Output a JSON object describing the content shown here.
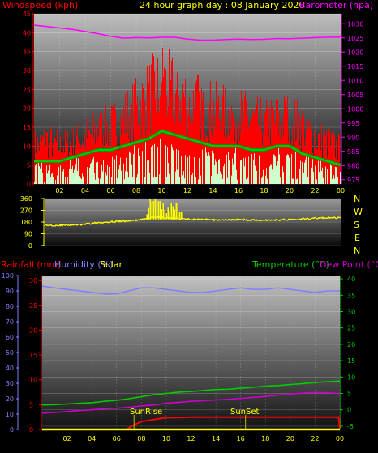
{
  "top_panel": {
    "title": "24 hour graph day : 08 January 2020",
    "left_label": "Windspeed (kph)",
    "right_label": "Barometer (hpa)"
  },
  "direction_panel": {
    "compass": [
      "N",
      "W",
      "S",
      "E",
      "N"
    ]
  },
  "bottom_panel": {
    "rain_label": "Rainfall (mm)",
    "humidity_label": "Humidity (%)",
    "solar_label": "Solar",
    "temp_label": "Temperature (°C)",
    "dew_label": "Dew Point (°C)",
    "sunrise_label": "SunRise",
    "sunset_label": "SunSet"
  },
  "colors": {
    "wind": "#ff0000",
    "wind_avg": "#00cc00",
    "wind_low": "#ccffcc",
    "pressure": "#ff00ff",
    "direction": "#ffff00",
    "temperature": "#00cc00",
    "dewpoint": "#cc00cc",
    "humidity": "#8080ff",
    "rain": "#ff0000",
    "solar": "#ffff00",
    "axis_left": "#ff0000",
    "axis_right": "#ff00ff"
  },
  "chart_data": [
    {
      "type": "line",
      "x_ticks": [
        "02",
        "04",
        "06",
        "08",
        "10",
        "12",
        "14",
        "16",
        "18",
        "20",
        "22",
        "00"
      ],
      "x_range_hours": [
        0,
        24
      ],
      "left_axis": {
        "label": "Windspeed (kph)",
        "ticks": [
          0,
          5,
          10,
          15,
          20,
          25,
          30,
          35,
          40,
          45
        ],
        "ylim": [
          0,
          45
        ]
      },
      "right_axis": {
        "label": "Barometer (hpa)",
        "ticks": [
          975,
          980,
          985,
          990,
          995,
          1000,
          1005,
          1010,
          1015,
          1020,
          1025,
          1030
        ],
        "ylim": [
          973.5,
          1033.5
        ]
      },
      "series": [
        {
          "name": "Windspeed (kph)",
          "kind": "gust",
          "x": [
            0,
            1,
            2,
            3,
            4,
            5,
            6,
            7,
            8,
            9,
            10,
            11,
            12,
            13,
            14,
            15,
            16,
            17,
            18,
            19,
            20,
            21,
            22,
            23,
            24
          ],
          "values": [
            12,
            14,
            12,
            13,
            15,
            17,
            18,
            21,
            24,
            28,
            31,
            29,
            27,
            25,
            23,
            22,
            22,
            20,
            19,
            20,
            21,
            18,
            15,
            13,
            11
          ]
        },
        {
          "name": "Windspeed (kph)",
          "kind": "average",
          "x": [
            0,
            1,
            2,
            3,
            4,
            5,
            6,
            7,
            8,
            9,
            10,
            11,
            12,
            13,
            14,
            15,
            16,
            17,
            18,
            19,
            20,
            21,
            22,
            23,
            24
          ],
          "values": [
            6,
            6,
            6,
            7,
            8,
            9,
            9,
            10,
            11,
            12,
            14,
            13,
            12,
            11,
            10,
            10,
            10,
            9,
            9,
            10,
            10,
            8,
            7,
            6,
            5
          ]
        },
        {
          "name": "Barometer (hpa)",
          "x": [
            0,
            1,
            2,
            3,
            4,
            5,
            6,
            7,
            8,
            9,
            10,
            11,
            12,
            13,
            14,
            15,
            16,
            17,
            18,
            19,
            20,
            21,
            22,
            23,
            24
          ],
          "values": [
            1029.5,
            1029.0,
            1028.5,
            1028.0,
            1027.3,
            1026.5,
            1025.6,
            1024.9,
            1025.1,
            1025.0,
            1025.2,
            1025.2,
            1024.6,
            1024.2,
            1024.2,
            1024.4,
            1024.6,
            1024.4,
            1024.5,
            1024.8,
            1024.7,
            1024.9,
            1025.1,
            1025.2,
            1025.3
          ]
        }
      ]
    },
    {
      "type": "line",
      "y_ticks": [
        0,
        90,
        180,
        270,
        360
      ],
      "ylim": [
        0,
        360
      ],
      "legend": [
        "N",
        "W",
        "S",
        "E",
        "N"
      ],
      "series": [
        {
          "name": "Wind direction",
          "x": [
            0,
            1,
            2,
            3,
            4,
            5,
            6,
            7,
            8,
            9,
            10,
            11,
            12,
            13,
            14,
            15,
            16,
            17,
            18,
            19,
            20,
            21,
            22,
            23,
            24
          ],
          "values": [
            155,
            155,
            158,
            160,
            172,
            180,
            185,
            190,
            200,
            220,
            210,
            205,
            200,
            198,
            196,
            197,
            198,
            195,
            195,
            196,
            200,
            205,
            210,
            212,
            212
          ]
        }
      ]
    },
    {
      "type": "line",
      "x_ticks": [
        "02",
        "04",
        "06",
        "08",
        "10",
        "12",
        "14",
        "16",
        "18",
        "20",
        "22",
        "00"
      ],
      "left_axis_rain": {
        "label": "Rainfall (mm)",
        "ticks": [
          0,
          5,
          10,
          15,
          20,
          25,
          30
        ],
        "ylim": [
          0,
          31
        ]
      },
      "left_axis_humidity": {
        "label": "Humidity (%)",
        "ticks": [
          0,
          10,
          20,
          30,
          40,
          50,
          60,
          70,
          80,
          90,
          100
        ],
        "ylim": [
          0,
          100
        ]
      },
      "right_axis": {
        "label": "Temperature (°C)",
        "ticks": [
          -5,
          0,
          5,
          10,
          15,
          20,
          25,
          30,
          35,
          40
        ],
        "ylim": [
          -6,
          41
        ]
      },
      "annotations": [
        "SunRise",
        "SunSet"
      ],
      "series": [
        {
          "name": "Humidity (%)",
          "x": [
            0,
            1,
            2,
            3,
            4,
            5,
            6,
            7,
            8,
            9,
            10,
            11,
            12,
            13,
            14,
            15,
            16,
            17,
            18,
            19,
            20,
            21,
            22,
            23,
            24
          ],
          "values": [
            93,
            92,
            91,
            90,
            89,
            88,
            88,
            90,
            92,
            92,
            91,
            90,
            89,
            89,
            90,
            91,
            92,
            91,
            91,
            92,
            91,
            90,
            89,
            90,
            90
          ]
        },
        {
          "name": "Temperature (°C)",
          "x": [
            0,
            1,
            2,
            3,
            4,
            5,
            6,
            7,
            8,
            9,
            10,
            11,
            12,
            13,
            14,
            15,
            16,
            17,
            18,
            19,
            20,
            21,
            22,
            23,
            24
          ],
          "values": [
            1.5,
            1.6,
            1.8,
            2.0,
            2.2,
            2.6,
            2.9,
            3.4,
            4.0,
            4.6,
            5.0,
            5.4,
            5.6,
            5.9,
            6.2,
            6.3,
            6.6,
            6.9,
            7.2,
            7.4,
            7.7,
            8.0,
            8.3,
            8.6,
            8.8
          ]
        },
        {
          "name": "Dew Point (°C)",
          "x": [
            0,
            1,
            2,
            3,
            4,
            5,
            6,
            7,
            8,
            9,
            10,
            11,
            12,
            13,
            14,
            15,
            16,
            17,
            18,
            19,
            20,
            21,
            22,
            23,
            24
          ],
          "values": [
            -1.0,
            -0.8,
            -0.5,
            -0.2,
            0.0,
            0.3,
            0.5,
            0.8,
            1.2,
            1.5,
            2.0,
            2.3,
            2.6,
            2.8,
            3.0,
            3.2,
            3.5,
            3.8,
            4.1,
            4.5,
            4.8,
            5.1,
            5.3,
            5.2,
            5.0
          ]
        },
        {
          "name": "Rainfall (mm)",
          "x": [
            0,
            6.8,
            7.3,
            8,
            9.5,
            10,
            11,
            12,
            13,
            14,
            15,
            16,
            17,
            18,
            19,
            20,
            21,
            22,
            23,
            23.9,
            24
          ],
          "values": [
            0,
            0,
            0.8,
            1.6,
            2.2,
            2.4,
            2.4,
            2.5,
            2.5,
            2.5,
            2.5,
            2.5,
            2.5,
            2.5,
            2.5,
            2.5,
            2.5,
            2.5,
            2.5,
            2.5,
            0
          ]
        },
        {
          "name": "Solar",
          "x": [
            0,
            24
          ],
          "values": [
            0,
            0
          ]
        }
      ]
    }
  ]
}
